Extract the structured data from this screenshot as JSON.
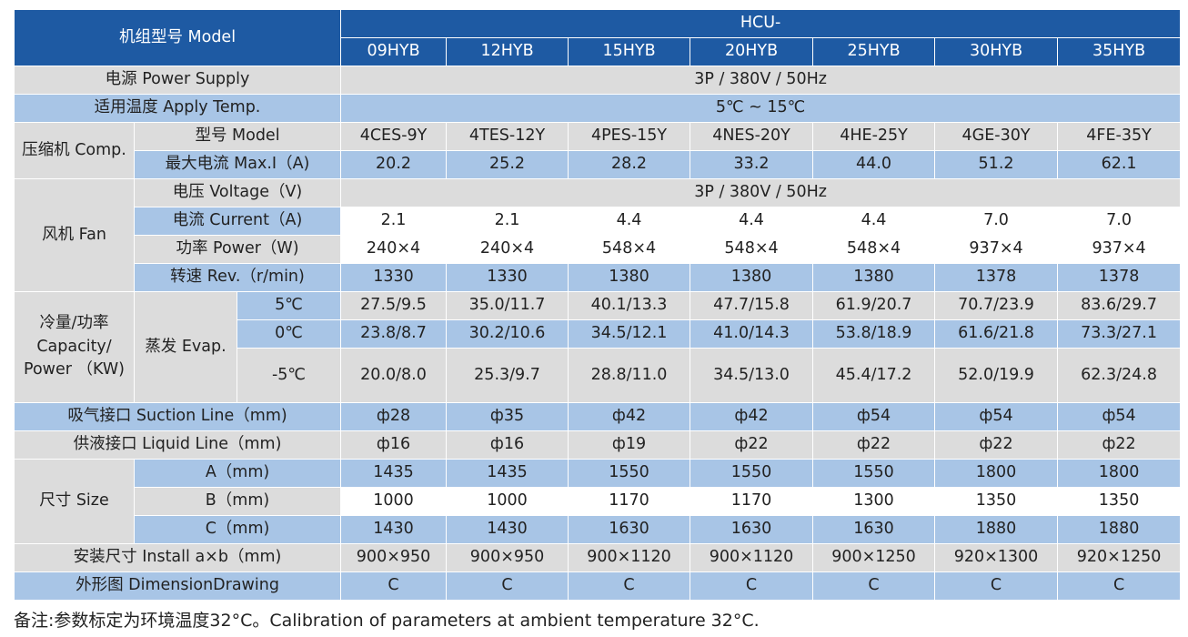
{
  "header": {
    "model_label": "机组型号 Model",
    "series": "HCU-",
    "models": [
      "09HYB",
      "12HYB",
      "15HYB",
      "20HYB",
      "25HYB",
      "30HYB",
      "35HYB"
    ]
  },
  "power_supply": {
    "label": "电源 Power Supply",
    "value": "3P / 380V / 50Hz"
  },
  "apply_temp": {
    "label": "适用温度 Apply Temp.",
    "value": "5℃ ~ 15℃"
  },
  "comp": {
    "group": "压缩机 Comp.",
    "model_label": "型号 Model",
    "model_values": [
      "4CES-9Y",
      "4TES-12Y",
      "4PES-15Y",
      "4NES-20Y",
      "4HE-25Y",
      "4GE-30Y",
      "4FE-35Y"
    ],
    "maxi_label": "最大电流 Max.I（A)",
    "maxi_values": [
      "20.2",
      "25.2",
      "28.2",
      "33.2",
      "44.0",
      "51.2",
      "62.1"
    ]
  },
  "fan": {
    "group": "风机 Fan",
    "voltage_label": "电压 Voltage（V)",
    "voltage_value": "3P / 380V / 50Hz",
    "current_label": "电流 Current（A)",
    "current_values": [
      "2.1",
      "2.1",
      "4.4",
      "4.4",
      "4.4",
      "7.0",
      "7.0"
    ],
    "power_label": "功率 Power（W)",
    "power_values": [
      "240×4",
      "240×4",
      "548×4",
      "548×4",
      "548×4",
      "937×4",
      "937×4"
    ],
    "rev_label": "转速 Rev.（r/min)",
    "rev_values": [
      "1330",
      "1330",
      "1380",
      "1380",
      "1380",
      "1378",
      "1378"
    ]
  },
  "capacity": {
    "group": "冷量/功率 Capacity/ Power （KW)",
    "evap": "蒸发 Evap.",
    "rows": [
      {
        "temp": "5℃",
        "values": [
          "27.5/9.5",
          "35.0/11.7",
          "40.1/13.3",
          "47.7/15.8",
          "61.9/20.7",
          "70.7/23.9",
          "83.6/29.7"
        ]
      },
      {
        "temp": "0℃",
        "values": [
          "23.8/8.7",
          "30.2/10.6",
          "34.5/12.1",
          "41.0/14.3",
          "53.8/18.9",
          "61.6/21.8",
          "73.3/27.1"
        ]
      },
      {
        "temp": "-5℃",
        "values": [
          "20.0/8.0",
          "25.3/9.7",
          "28.8/11.0",
          "34.5/13.0",
          "45.4/17.2",
          "52.0/19.9",
          "62.3/24.8"
        ]
      }
    ]
  },
  "suction": {
    "label": "吸气接口 Suction Line（mm)",
    "values": [
      "ф28",
      "ф35",
      "ф42",
      "ф42",
      "ф54",
      "ф54",
      "ф54"
    ]
  },
  "liquid": {
    "label": "供液接口 Liquid Line（mm)",
    "values": [
      "ф16",
      "ф16",
      "ф19",
      "ф22",
      "ф22",
      "ф22",
      "ф22"
    ]
  },
  "size": {
    "group": "尺寸 Size",
    "a_label": "A（mm)",
    "a_values": [
      "1435",
      "1435",
      "1550",
      "1550",
      "1550",
      "1800",
      "1800"
    ],
    "b_label": "B（mm)",
    "b_values": [
      "1000",
      "1000",
      "1170",
      "1170",
      "1300",
      "1350",
      "1350"
    ],
    "c_label": "C（mm)",
    "c_values": [
      "1430",
      "1430",
      "1630",
      "1630",
      "1630",
      "1880",
      "1880"
    ]
  },
  "install": {
    "label": "安装尺寸 Install a×b（mm)",
    "values": [
      "900×950",
      "900×950",
      "900×1120",
      "900×1120",
      "900×1250",
      "920×1300",
      "920×1250"
    ]
  },
  "drawing": {
    "label": "外形图 DimensionDrawing",
    "values": [
      "C",
      "C",
      "C",
      "C",
      "C",
      "C",
      "C"
    ]
  },
  "footnote": "备注:参数标定为环境温度32°C。Calibration of parameters at ambient temperature 32°C."
}
